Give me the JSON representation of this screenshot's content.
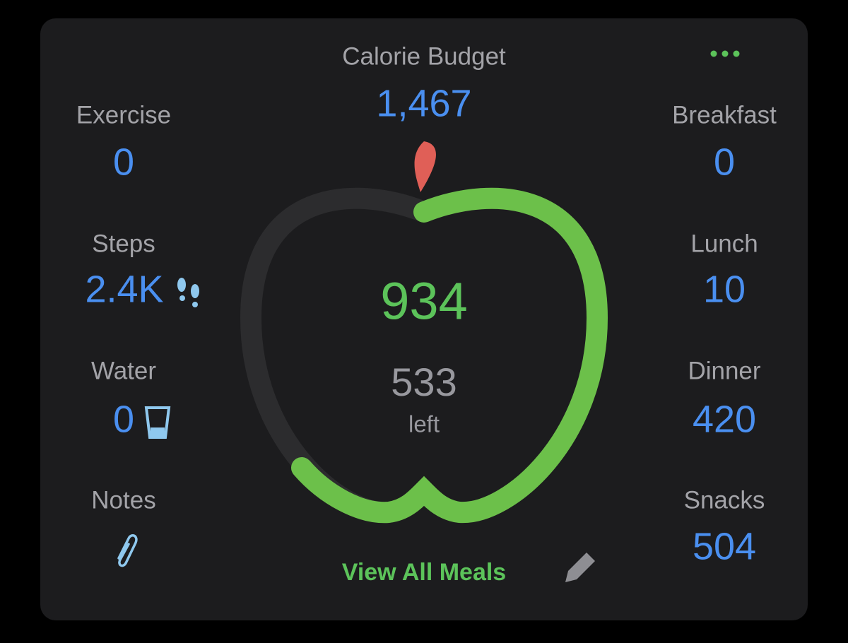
{
  "header": {
    "title": "Calorie Budget",
    "budget": "1,467"
  },
  "center": {
    "eaten": "934",
    "remaining": "533",
    "remaining_label": "left"
  },
  "left_stats": [
    {
      "label": "Exercise",
      "value": "0"
    },
    {
      "label": "Steps",
      "value": "2.4K"
    },
    {
      "label": "Water",
      "value": "0"
    },
    {
      "label": "Notes"
    }
  ],
  "right_stats": [
    {
      "label": "Breakfast",
      "value": "0"
    },
    {
      "label": "Lunch",
      "value": "10"
    },
    {
      "label": "Dinner",
      "value": "420"
    },
    {
      "label": "Snacks",
      "value": "504"
    }
  ],
  "footer": {
    "button": "View All Meals"
  }
}
